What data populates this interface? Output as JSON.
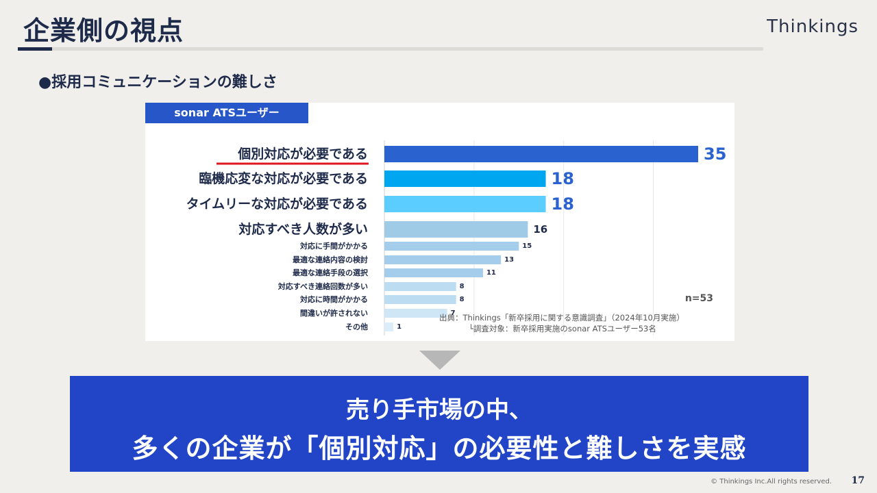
{
  "header": {
    "title": "企業側の視点",
    "brand": "Thinkings"
  },
  "section": {
    "heading": "●採用コミュニケーションの難しさ"
  },
  "chart_panel": {
    "tag": "sonar ATSユーザー",
    "n_label": "n=53",
    "source_line1": "出典：Thinkings「新卒採用に関する意識調査」（2024年10月実施）",
    "source_line2": "└調査対象：新卒採用実施のsonar ATSユーザー53名"
  },
  "chart_data": {
    "type": "bar",
    "orientation": "horizontal",
    "categories": [
      "個別対応が必要である",
      "臨機応変な対応が必要である",
      "タイムリーな対応が必要である",
      "対応すべき人数が多い",
      "対応に手間がかかる",
      "最適な連絡内容の検討",
      "最適な連絡手段の選択",
      "対応すべき連絡回数が多い",
      "対応に時間がかかる",
      "間違いが許されない",
      "その他"
    ],
    "values": [
      35,
      18,
      18,
      16,
      15,
      13,
      11,
      8,
      8,
      7,
      1
    ],
    "bar_colors": [
      "#2a62d0",
      "#00a6f0",
      "#5ccdff",
      "#9fcbe6",
      "#a3cdea",
      "#a3cdea",
      "#a3cdea",
      "#bcdcf2",
      "#bcdcf2",
      "#cfe6f7",
      "#dcedfa"
    ],
    "highlighted_category": "個別対応が必要である",
    "highlight_color": "#e0161e",
    "grid": true
  },
  "conclusion": {
    "line1": "売り手市場の中、",
    "line2": "多くの企業が「個別対応」の必要性と難しさを実感"
  },
  "footer": {
    "copyright": "© Thinkings Inc.All rights reserved.",
    "page": "17"
  }
}
